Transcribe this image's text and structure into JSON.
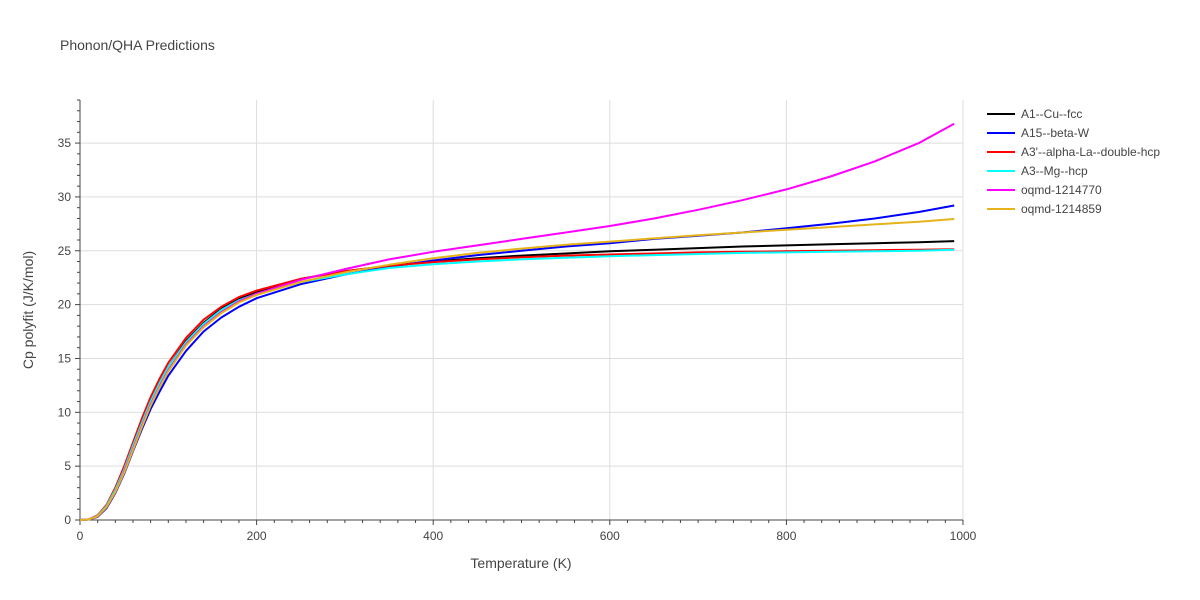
{
  "chart_data": {
    "type": "line",
    "title": "Phonon/QHA Predictions",
    "xlabel": "Temperature (K)",
    "ylabel": "Cp polyfit (J/K/mol)",
    "xlim": [
      0,
      1000
    ],
    "ylim": [
      0,
      39
    ],
    "xticks": [
      0,
      200,
      400,
      600,
      800,
      1000
    ],
    "yticks": [
      0,
      5,
      10,
      15,
      20,
      25,
      30,
      35
    ],
    "grid": true,
    "legend_position": "top-right",
    "x": [
      0,
      10,
      20,
      30,
      40,
      50,
      60,
      70,
      80,
      90,
      100,
      120,
      140,
      160,
      180,
      200,
      250,
      300,
      350,
      400,
      450,
      500,
      550,
      600,
      650,
      700,
      750,
      800,
      850,
      900,
      950,
      990
    ],
    "series": [
      {
        "name": "A1--Cu--fcc",
        "color": "#000000",
        "values": [
          0,
          0.05,
          0.4,
          1.3,
          2.8,
          4.7,
          6.9,
          9.0,
          11.0,
          12.7,
          14.2,
          16.6,
          18.3,
          19.6,
          20.5,
          21.2,
          22.4,
          23.1,
          23.6,
          24.0,
          24.3,
          24.55,
          24.75,
          24.95,
          25.1,
          25.25,
          25.4,
          25.5,
          25.6,
          25.7,
          25.8,
          25.9
        ]
      },
      {
        "name": "A15--beta-W",
        "color": "#0000ff",
        "values": [
          0,
          0.05,
          0.3,
          1.1,
          2.5,
          4.3,
          6.4,
          8.4,
          10.3,
          11.9,
          13.4,
          15.7,
          17.5,
          18.8,
          19.8,
          20.6,
          21.9,
          22.8,
          23.5,
          24.1,
          24.6,
          25.0,
          25.4,
          25.7,
          26.1,
          26.4,
          26.7,
          27.1,
          27.5,
          28.0,
          28.6,
          29.2
        ]
      },
      {
        "name": "A3'--alpha-La--double-hcp",
        "color": "#ff0000",
        "values": [
          0,
          0.06,
          0.45,
          1.4,
          3.0,
          5.0,
          7.2,
          9.4,
          11.4,
          13.1,
          14.6,
          16.9,
          18.6,
          19.8,
          20.7,
          21.3,
          22.4,
          23.1,
          23.6,
          23.95,
          24.2,
          24.4,
          24.55,
          24.65,
          24.75,
          24.85,
          24.9,
          24.95,
          25.0,
          25.05,
          25.1,
          25.15
        ]
      },
      {
        "name": "A3--Mg--hcp",
        "color": "#00ffff",
        "values": [
          0,
          0.05,
          0.4,
          1.3,
          2.8,
          4.7,
          6.9,
          9.0,
          11.0,
          12.7,
          14.2,
          16.5,
          18.2,
          19.5,
          20.4,
          21.0,
          22.1,
          22.8,
          23.4,
          23.75,
          24.0,
          24.2,
          24.35,
          24.5,
          24.6,
          24.7,
          24.8,
          24.85,
          24.9,
          24.95,
          25.0,
          25.1
        ]
      },
      {
        "name": "oqmd-1214770",
        "color": "#ff00ff",
        "values": [
          0,
          0.05,
          0.35,
          1.2,
          2.6,
          4.5,
          6.6,
          8.7,
          10.7,
          12.4,
          13.9,
          16.3,
          18.0,
          19.3,
          20.3,
          21.0,
          22.3,
          23.3,
          24.2,
          24.9,
          25.5,
          26.1,
          26.7,
          27.3,
          28.0,
          28.8,
          29.7,
          30.7,
          31.9,
          33.3,
          35.0,
          36.8
        ]
      },
      {
        "name": "oqmd-1214859",
        "color": "#e5b31a",
        "values": [
          0,
          0.05,
          0.35,
          1.2,
          2.6,
          4.4,
          6.5,
          8.6,
          10.6,
          12.3,
          13.8,
          16.2,
          17.9,
          19.2,
          20.2,
          20.9,
          22.1,
          23.0,
          23.7,
          24.3,
          24.8,
          25.2,
          25.55,
          25.85,
          26.15,
          26.45,
          26.7,
          26.95,
          27.2,
          27.45,
          27.7,
          27.95
        ]
      }
    ]
  }
}
